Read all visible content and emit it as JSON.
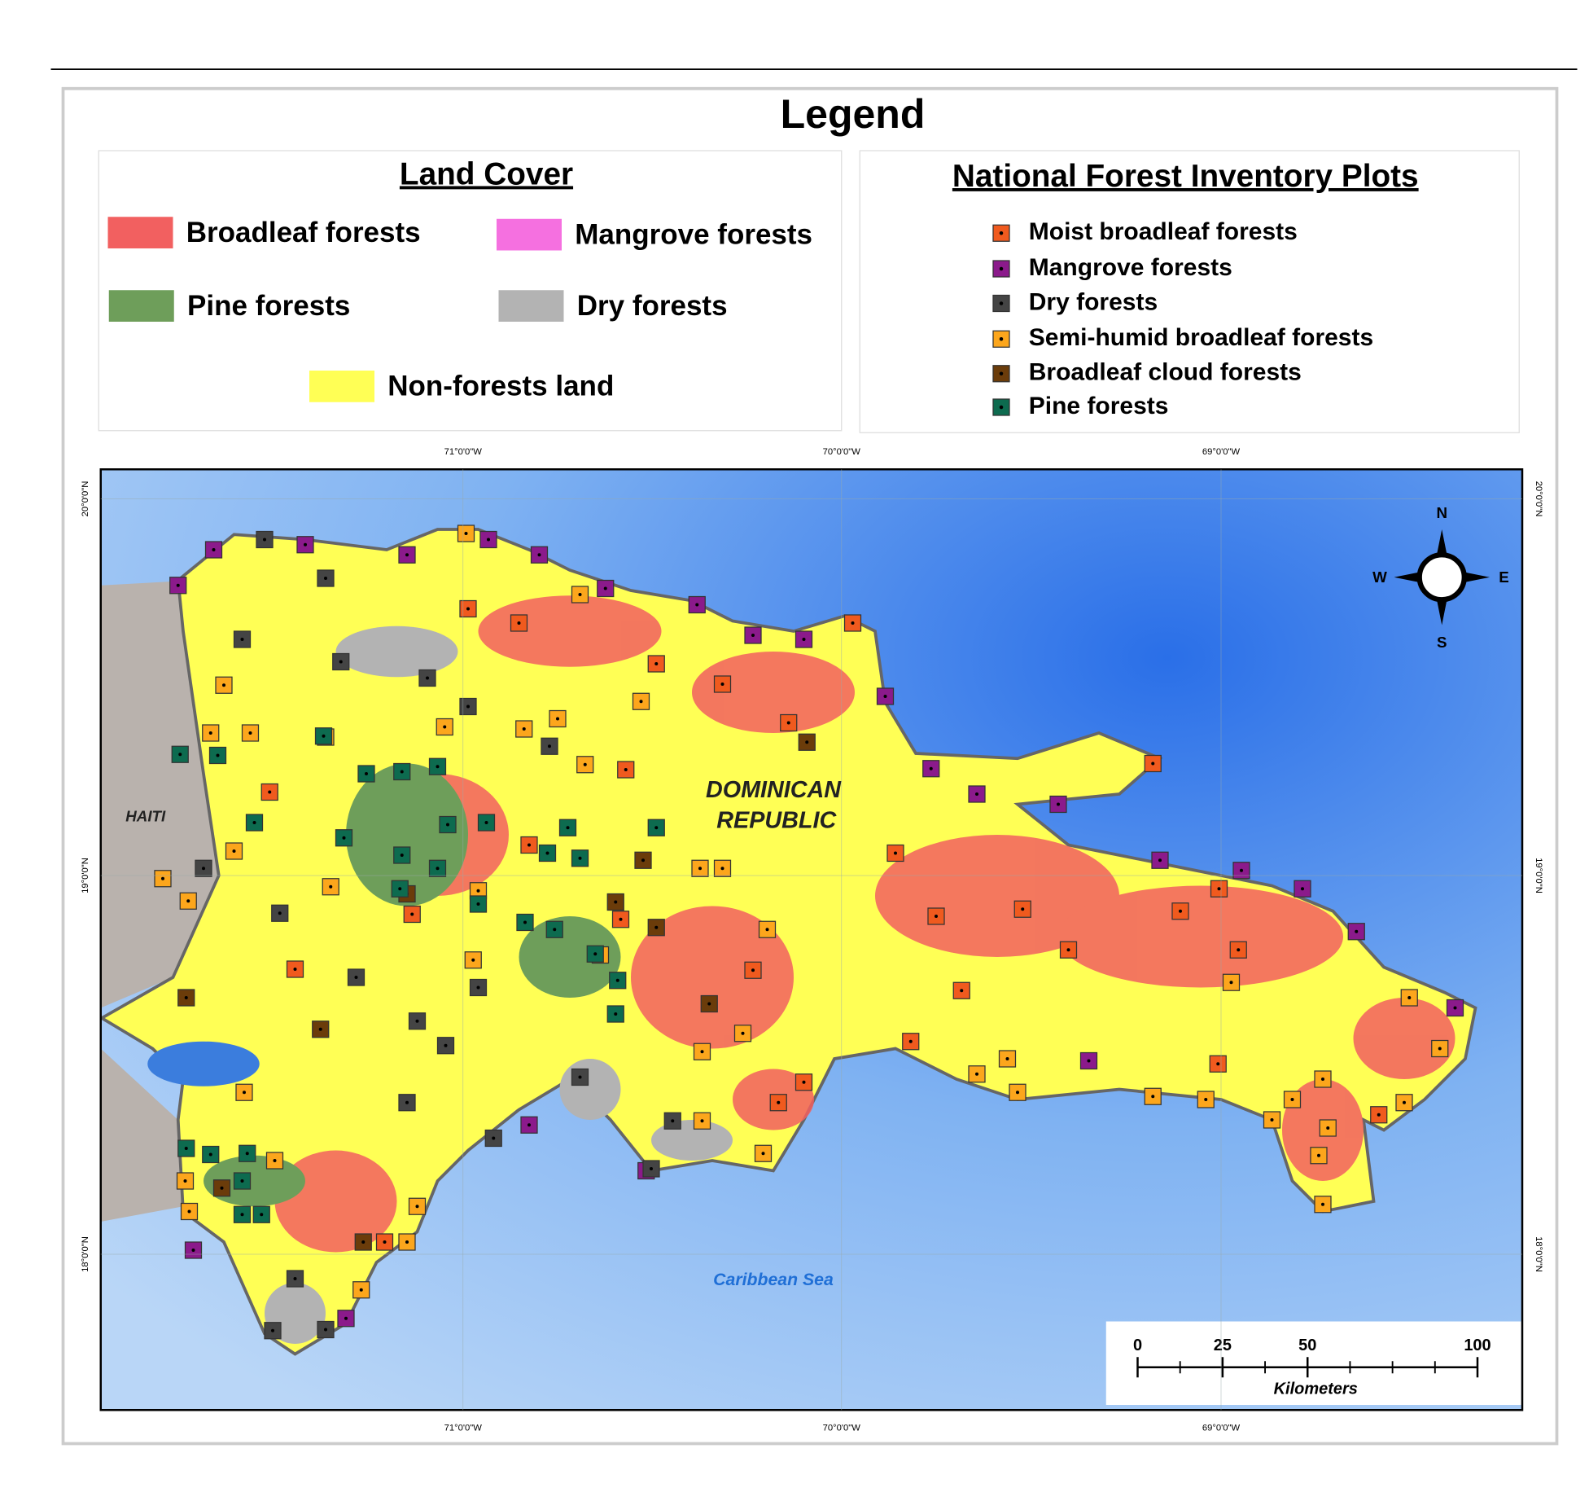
{
  "legend": {
    "title": "Legend",
    "land_cover": {
      "title": "Land Cover",
      "items": [
        {
          "label": "Broadleaf forests",
          "color": "#f26060"
        },
        {
          "label": "Mangrove forests",
          "color": "#f570e0"
        },
        {
          "label": "Pine forests",
          "color": "#6e9e5a"
        },
        {
          "label": "Dry forests",
          "color": "#b3b3b3"
        },
        {
          "label": "Non-forests land",
          "color": "#ffff55"
        }
      ]
    },
    "nfi_plots": {
      "title": "National Forest Inventory Plots",
      "items": [
        {
          "label": "Moist broadleaf forests",
          "color": "#f05a1e"
        },
        {
          "label": "Mangrove forests",
          "color": "#8b1a8b"
        },
        {
          "label": "Dry forests",
          "color": "#444444"
        },
        {
          "label": "Semi-humid broadleaf forests",
          "color": "#fca61c"
        },
        {
          "label": "Broadleaf cloud forests",
          "color": "#6b3c0a"
        },
        {
          "label": "Pine forests",
          "color": "#0d6b4f"
        }
      ]
    }
  },
  "map": {
    "labels": {
      "country": [
        "DOMINICAN",
        "REPUBLIC"
      ],
      "neighbor": "HAITI",
      "sea": "Caribbean Sea"
    },
    "longitudes": [
      "71°0'0\"W",
      "70°0'0\"W",
      "69°0'0\"W"
    ],
    "latitudes": [
      "20°0'0\"N",
      "19°0'0\"N",
      "18°0'0\"N"
    ],
    "compass": {
      "north": "N",
      "south": "S",
      "east": "E",
      "west": "W"
    },
    "scale_bar": {
      "ticks": [
        0,
        25,
        50,
        100
      ],
      "unit": "Kilometers"
    }
  }
}
